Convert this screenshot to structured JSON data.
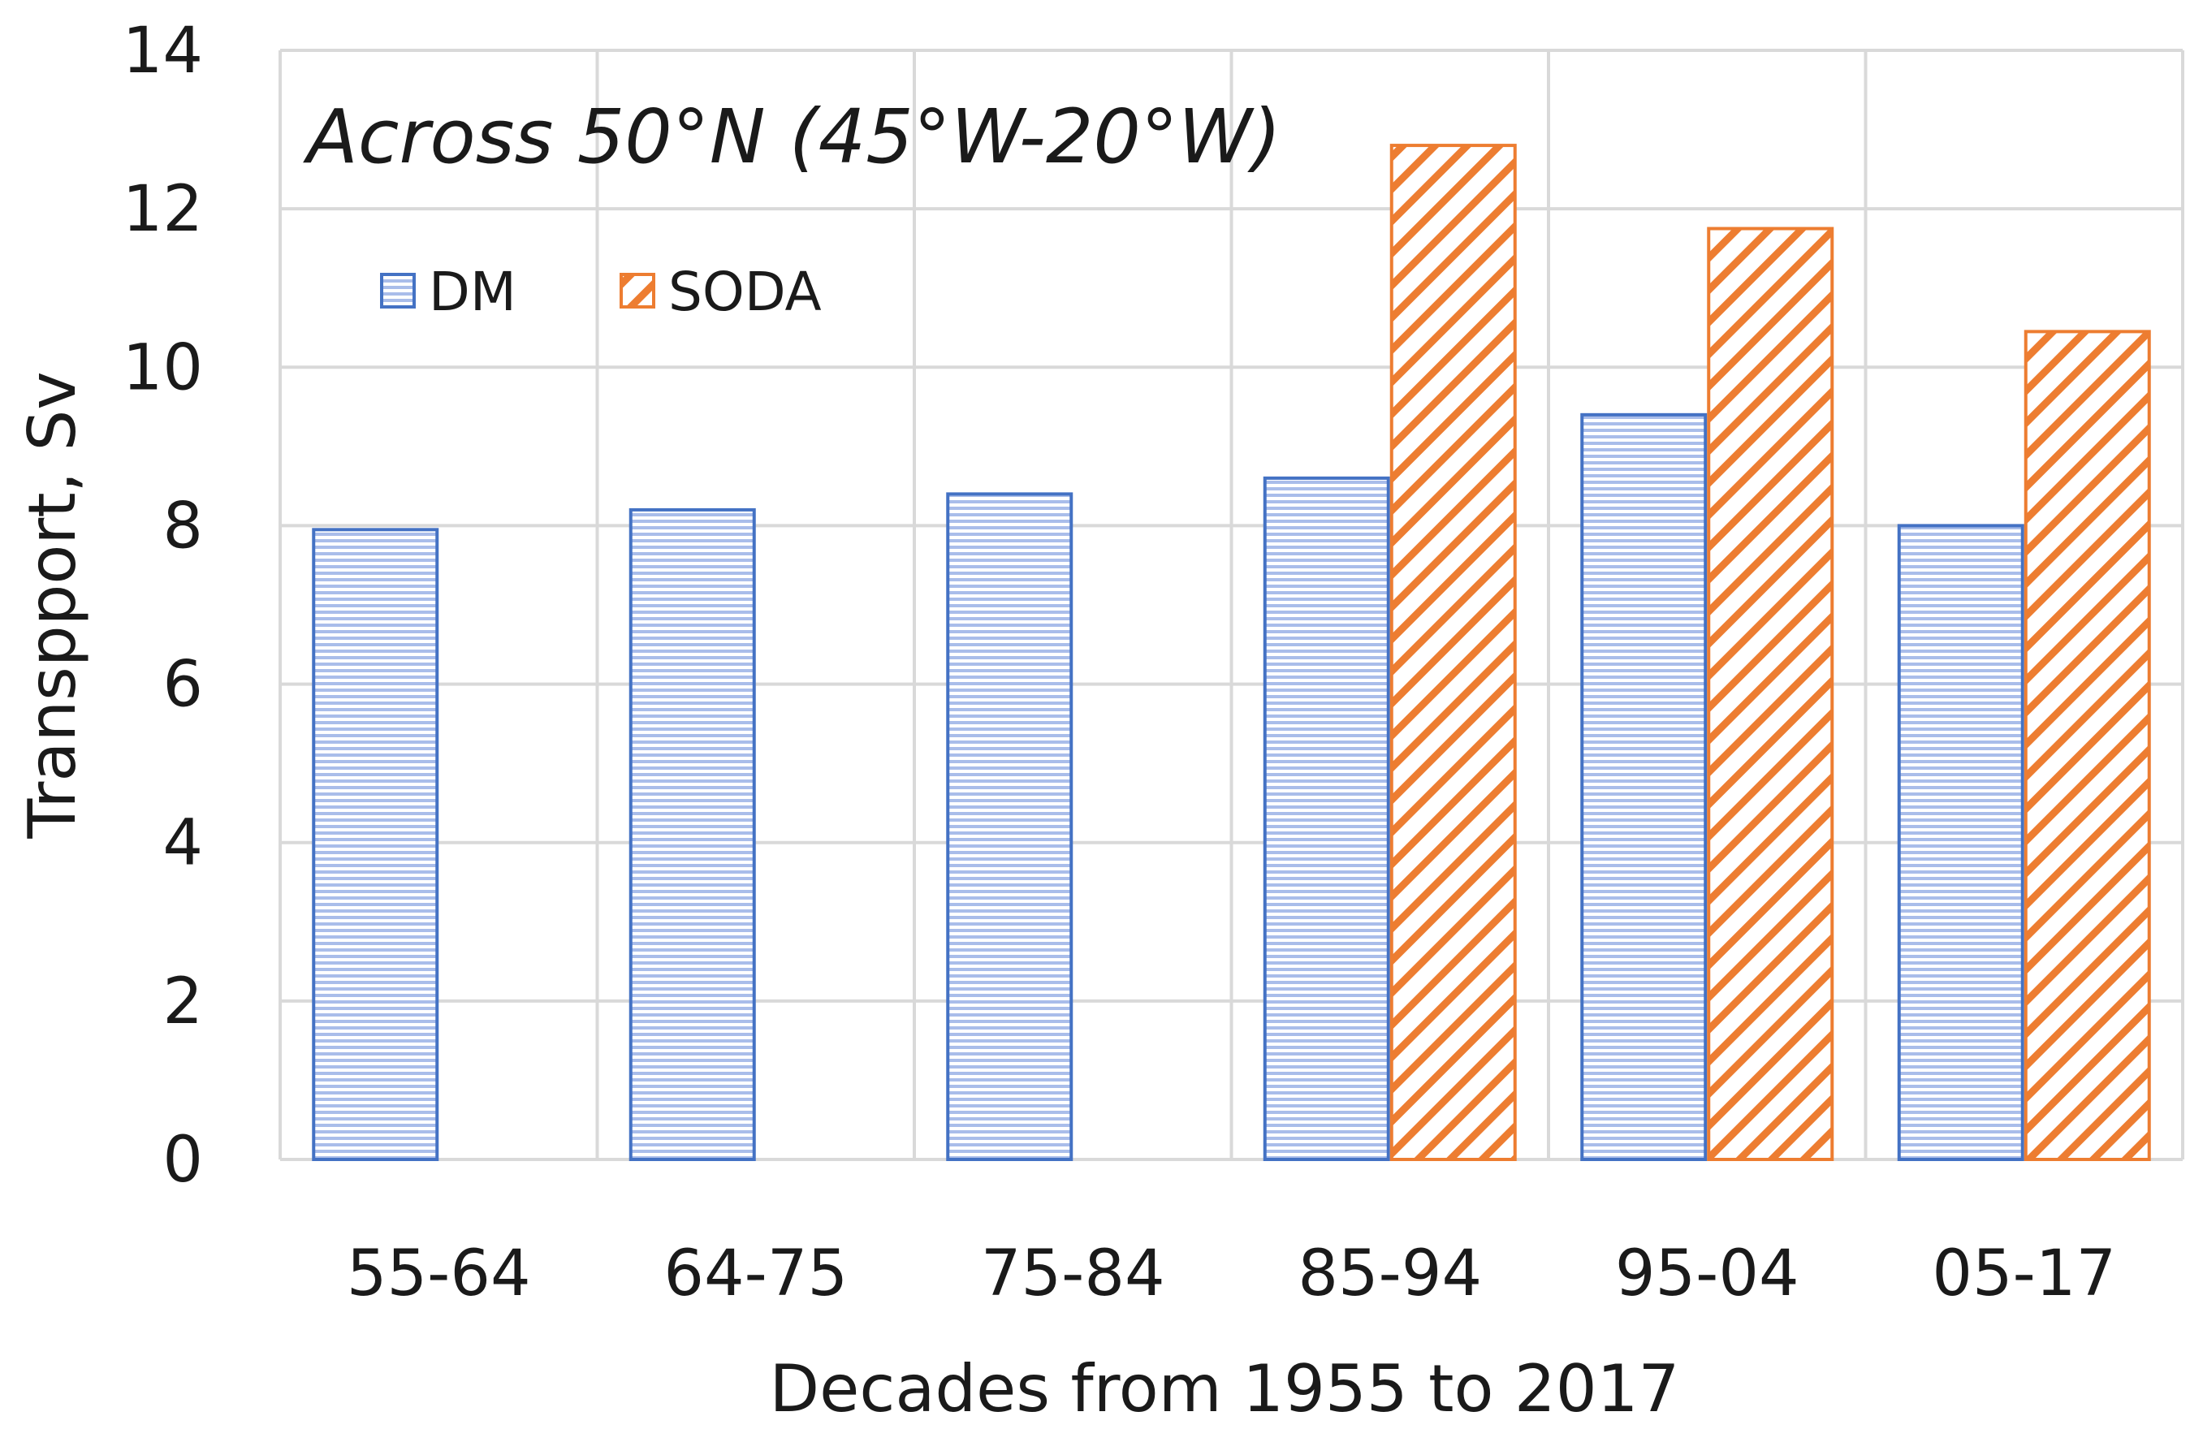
{
  "chart_data": {
    "type": "bar",
    "title": "Across 50°N (45°W-20°W)",
    "xlabel": "Decades from 1955 to 2017",
    "ylabel": "Transpport, Sv",
    "categories": [
      "55-64",
      "64-75",
      "75-84",
      "85-94",
      "95-04",
      "05-17"
    ],
    "series": [
      {
        "name": "DM",
        "values": [
          7.95,
          8.2,
          8.4,
          8.6,
          9.4,
          8.0
        ]
      },
      {
        "name": "SODA",
        "values": [
          null,
          null,
          null,
          12.8,
          11.75,
          10.45
        ]
      }
    ],
    "ylim": [
      0,
      14
    ],
    "yticks": [
      "0",
      "2",
      "4",
      "6",
      "8",
      "10",
      "12",
      "14"
    ],
    "grid": true,
    "legend_position": "top-left"
  },
  "colors": {
    "DM_fill": "#a9bdea",
    "DM_line": "#4472c4",
    "SODA_line": "#ed7d31",
    "grid": "#d9d9d9"
  }
}
